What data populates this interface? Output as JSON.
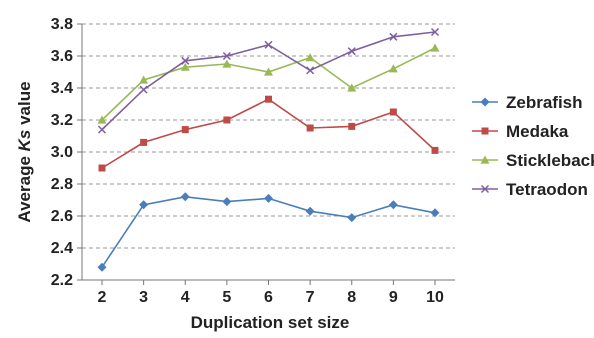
{
  "chart_data": {
    "type": "line",
    "title": "",
    "xlabel": "Duplication set size",
    "ylabel_prefix": "Average ",
    "ylabel_italic": "Ks",
    "ylabel_suffix": " value",
    "x": [
      2,
      3,
      4,
      5,
      6,
      7,
      8,
      9,
      10
    ],
    "ylim": [
      2.2,
      3.8
    ],
    "yticks": [
      "2.2",
      "2.4",
      "2.6",
      "2.8",
      "3.0",
      "3.2",
      "3.4",
      "3.6",
      "3.8"
    ],
    "grid": true,
    "legend_position": "right",
    "series": [
      {
        "name": "Zebrafish",
        "color": "#4a7ebb",
        "marker": "diamond",
        "values": [
          2.28,
          2.67,
          2.72,
          2.69,
          2.71,
          2.63,
          2.59,
          2.67,
          2.62
        ]
      },
      {
        "name": "Medaka",
        "color": "#be4b48",
        "marker": "square",
        "values": [
          2.9,
          3.06,
          3.14,
          3.2,
          3.33,
          3.15,
          3.16,
          3.25,
          3.01
        ]
      },
      {
        "name": "Stickleback",
        "color": "#98b954",
        "marker": "triangle",
        "values": [
          3.2,
          3.45,
          3.53,
          3.55,
          3.5,
          3.59,
          3.4,
          3.52,
          3.65
        ]
      },
      {
        "name": "Tetraodon",
        "color": "#7d60a0",
        "marker": "x",
        "values": [
          3.14,
          3.39,
          3.57,
          3.6,
          3.67,
          3.51,
          3.63,
          3.72,
          3.75
        ]
      }
    ]
  }
}
